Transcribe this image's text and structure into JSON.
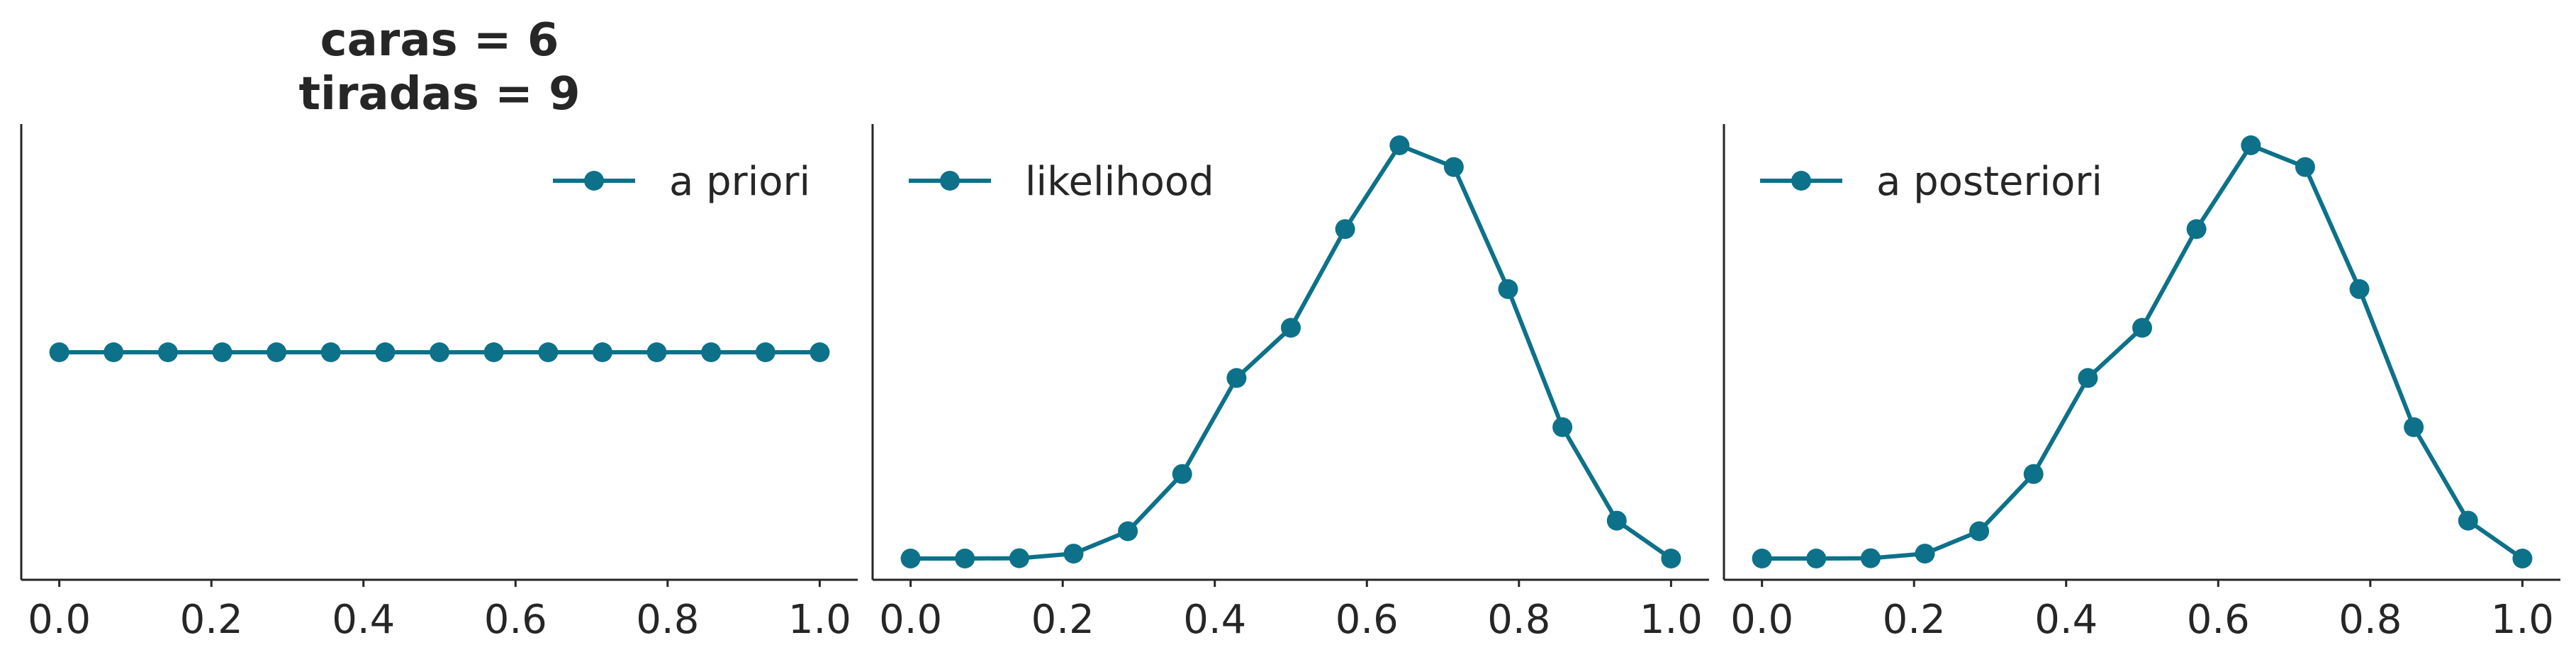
{
  "colors": {
    "series": "#0d718a",
    "axis": "#262626",
    "text": "#262626",
    "background": "#ffffff"
  },
  "chart_data": [
    {
      "type": "line",
      "title": "caras = 6\ntiradas = 9",
      "title_lines": [
        "caras = 6",
        "tiradas = 9"
      ],
      "x_ticks": [
        "0.0",
        "0.2",
        "0.4",
        "0.6",
        "0.8",
        "1.0"
      ],
      "xlim": [
        -0.05,
        1.05
      ],
      "ylim": [
        0,
        0.1
      ],
      "y_ticks_visible": false,
      "grid": false,
      "legend_position": "upper right",
      "series": [
        {
          "name": "a priori",
          "marker": "circle",
          "x": [
            0.0,
            0.0714,
            0.1429,
            0.2143,
            0.2857,
            0.3571,
            0.4286,
            0.5,
            0.5714,
            0.6429,
            0.7143,
            0.7857,
            0.8571,
            0.9286,
            1.0
          ],
          "y": [
            0.0667,
            0.0667,
            0.0667,
            0.0667,
            0.0667,
            0.0667,
            0.0667,
            0.0667,
            0.0667,
            0.0667,
            0.0667,
            0.0667,
            0.0667,
            0.0667,
            0.0667
          ]
        }
      ]
    },
    {
      "type": "line",
      "title": "",
      "x_ticks": [
        "0.0",
        "0.2",
        "0.4",
        "0.6",
        "0.8",
        "1.0"
      ],
      "xlim": [
        -0.05,
        1.05
      ],
      "ylim": [
        -0.015,
        0.31
      ],
      "y_ticks_visible": false,
      "grid": false,
      "legend_position": "upper left",
      "series": [
        {
          "name": "likelihood",
          "marker": "circle",
          "x": [
            0.0,
            0.0714,
            0.1429,
            0.2143,
            0.2857,
            0.3571,
            0.4286,
            0.5,
            0.5714,
            0.6429,
            0.7143,
            0.7857,
            0.8571,
            0.9286,
            1.0
          ],
          "y": [
            0.0,
            0.0,
            0.0002,
            0.0035,
            0.0194,
            0.0601,
            0.1284,
            0.1641,
            0.2343,
            0.2939,
            0.2784,
            0.1916,
            0.0934,
            0.0269,
            0.0
          ]
        }
      ]
    },
    {
      "type": "line",
      "title": "",
      "x_ticks": [
        "0.0",
        "0.2",
        "0.4",
        "0.6",
        "0.8",
        "1.0"
      ],
      "xlim": [
        -0.05,
        1.05
      ],
      "ylim": [
        -0.015,
        0.31
      ],
      "y_ticks_visible": false,
      "grid": false,
      "legend_position": "upper left",
      "series": [
        {
          "name": "a posteriori",
          "marker": "circle",
          "x": [
            0.0,
            0.0714,
            0.1429,
            0.2143,
            0.2857,
            0.3571,
            0.4286,
            0.5,
            0.5714,
            0.6429,
            0.7143,
            0.7857,
            0.8571,
            0.9286,
            1.0
          ],
          "y": [
            0.0,
            0.0,
            0.0002,
            0.0035,
            0.0194,
            0.0601,
            0.1284,
            0.1641,
            0.2343,
            0.2939,
            0.2784,
            0.1916,
            0.0934,
            0.0269,
            0.0
          ]
        }
      ]
    }
  ]
}
